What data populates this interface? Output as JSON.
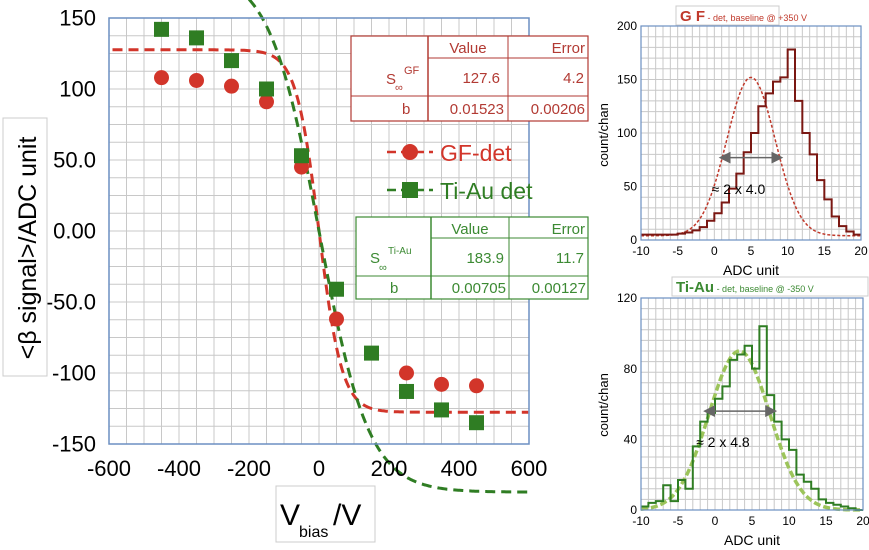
{
  "chart_data": [
    {
      "type": "scatter",
      "ylabel": "<β signal>/ADC unit",
      "xlabel_main": "V",
      "xlabel_sub": "bias",
      "xlabel_unit": "/V",
      "xlim": [
        -600,
        600
      ],
      "ylim": [
        -150,
        150
      ],
      "x_ticks": [
        -600,
        -400,
        -200,
        0,
        200,
        400,
        600
      ],
      "x_tick_labels": [
        "-600",
        "-400",
        "-200",
        "0",
        "200",
        "400",
        "600"
      ],
      "y_ticks": [
        150,
        100,
        50,
        0,
        -50,
        -100,
        -150
      ],
      "y_tick_labels": [
        "150",
        "100",
        "50.0",
        "0.00",
        "-50.0",
        "-100",
        "-150"
      ],
      "grid": true,
      "legend_position": "center-right",
      "series": [
        {
          "name": "GF-det",
          "color": "#d2352a",
          "marker": "circle",
          "x": [
            -450,
            -350,
            -250,
            -150,
            -50,
            50,
            250,
            350,
            450
          ],
          "y": [
            108,
            106,
            102,
            91,
            45,
            -62,
            -100,
            -108,
            -109
          ],
          "fit": {
            "S": 127.6,
            "b": 0.01523
          }
        },
        {
          "name": "Ti-Au det",
          "color": "#2f7d23",
          "marker": "square",
          "x": [
            -450,
            -350,
            -250,
            -150,
            -50,
            50,
            150,
            250,
            350,
            450
          ],
          "y": [
            142,
            136,
            120,
            100,
            53,
            -41,
            -86,
            -113,
            -126,
            -135
          ],
          "fit": {
            "S": 183.9,
            "b": 0.00705
          }
        }
      ],
      "fit_tables": [
        {
          "color": "#b23a33",
          "header": [
            "",
            "Value",
            "Error"
          ],
          "rows": [
            {
              "param_main": "S",
              "param_sub": "∞",
              "param_sup": "GF",
              "value": "127.6",
              "error": "4.2"
            },
            {
              "param_main": "b",
              "param_sub": "",
              "param_sup": "",
              "value": "0.01523",
              "error": "0.00206"
            }
          ]
        },
        {
          "color": "#3c8a33",
          "header": [
            "",
            "Value",
            "Error"
          ],
          "rows": [
            {
              "param_main": "S",
              "param_sub": "∞",
              "param_sup": "Ti-Au",
              "value": "183.9",
              "error": "11.7"
            },
            {
              "param_main": "b",
              "param_sub": "",
              "param_sup": "",
              "value": "0.00705",
              "error": "0.00127"
            }
          ]
        }
      ]
    },
    {
      "type": "line",
      "title_main": "G F",
      "title_rest": " - det, baseline @ +350 V",
      "xlabel": "ADC unit",
      "ylabel": "count/chan",
      "xlim": [
        -10,
        20
      ],
      "ylim": [
        0,
        200
      ],
      "x_ticks": [
        -10,
        -5,
        0,
        5,
        10,
        15,
        20
      ],
      "x_tick_labels": [
        "-10",
        "-5",
        "0",
        "5",
        "10",
        "15",
        "20"
      ],
      "y_ticks": [
        0,
        50,
        100,
        150,
        200
      ],
      "y_tick_labels": [
        "0",
        "50",
        "100",
        "150",
        "200"
      ],
      "grid": true,
      "annotation": "≈ 2 x 4.0",
      "color": "#7a1712",
      "fit_color": "#c0392b",
      "bin_width": 1,
      "bin_edges_start": -10,
      "counts": [
        5,
        5,
        5,
        5,
        5,
        6,
        7,
        9,
        12,
        18,
        25,
        35,
        48,
        62,
        82,
        100,
        125,
        137,
        148,
        152,
        178,
        130,
        100,
        80,
        56,
        38,
        22,
        13,
        8,
        5
      ],
      "fit": {
        "amplitude": 148,
        "mean": 5,
        "sigma": 3.3,
        "offset": 4
      },
      "fwhm_arrow": {
        "x_start": 1,
        "x_end": 9,
        "y": 77
      }
    },
    {
      "type": "line",
      "title_main": "Ti-Au",
      "title_rest": " - det, baseline @ -350 V",
      "xlabel": "ADC unit",
      "ylabel": "count/chan",
      "xlim": [
        -10,
        20
      ],
      "ylim": [
        0,
        120
      ],
      "x_ticks": [
        -10,
        -5,
        0,
        5,
        10,
        15,
        20
      ],
      "x_tick_labels": [
        "-10",
        "-5",
        "0",
        "5",
        "10",
        "15",
        "20"
      ],
      "y_ticks": [
        0,
        40,
        80,
        120
      ],
      "y_tick_labels": [
        "0",
        "40",
        "80",
        "120"
      ],
      "grid": true,
      "annotation": "≈ 2 x 4.8",
      "color": "#2f7d23",
      "fit_color": "#9cc45a",
      "bin_width": 1,
      "bin_edges_start": -10,
      "counts": [
        2,
        4,
        5,
        14,
        5,
        17,
        12,
        36,
        50,
        55,
        63,
        70,
        85,
        88,
        93,
        80,
        104,
        65,
        50,
        40,
        34,
        20,
        16,
        12,
        6,
        4,
        3,
        2,
        1,
        0
      ],
      "fit": {
        "amplitude": 90,
        "mean": 3.3,
        "sigma": 4.1,
        "offset": 0
      },
      "fwhm_arrow": {
        "x_start": -1.2,
        "x_end": 8,
        "y": 56
      }
    }
  ]
}
